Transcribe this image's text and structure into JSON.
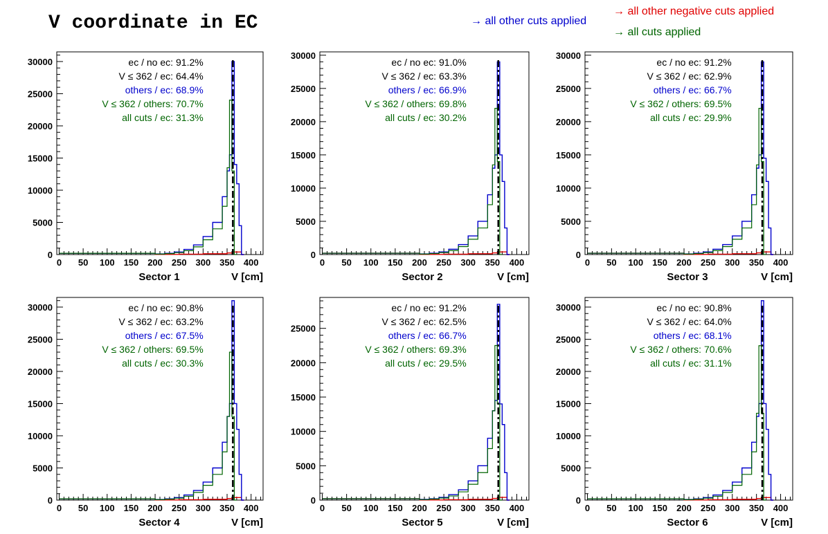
{
  "title": "V coordinate in EC",
  "legend": {
    "blue": "→ all other cuts applied",
    "red": "→ all other negative cuts applied",
    "green": "→ all cuts applied"
  },
  "colors": {
    "blue": "#0000cc",
    "red": "#e00000",
    "green": "#006400",
    "black": "#000000"
  },
  "chart_data": [
    {
      "type": "bar",
      "panel": "Sector 1",
      "xlabel": "V [cm]",
      "xlim": [
        -5,
        425
      ],
      "ylim": [
        0,
        31500
      ],
      "xticks": [
        0,
        50,
        100,
        150,
        200,
        250,
        300,
        350,
        400
      ],
      "yticks": [
        0,
        5000,
        10000,
        15000,
        20000,
        25000,
        30000
      ],
      "cut_line_x": 362,
      "stats": [
        {
          "label": "ec / no ec:",
          "value": "91.2%",
          "color": "black"
        },
        {
          "label": "V ≤ 362 / ec:",
          "value": "64.4%",
          "color": "black"
        },
        {
          "label": "others / ec:",
          "value": "68.9%",
          "color": "blue"
        },
        {
          "label": "V ≤ 362 / others:",
          "value": "70.7%",
          "color": "green"
        },
        {
          "label": "all cuts / ec:",
          "value": "31.3%",
          "color": "green"
        }
      ],
      "series": [
        {
          "name": "all other cuts applied",
          "color": "blue",
          "x": [
            200,
            220,
            240,
            260,
            280,
            300,
            320,
            340,
            350,
            355,
            360,
            365,
            370,
            375,
            380
          ],
          "y": [
            100,
            200,
            400,
            800,
            1500,
            2800,
            5000,
            9000,
            13000,
            15500,
            30000,
            14000,
            11000,
            4500,
            0
          ]
        },
        {
          "name": "all cuts applied",
          "color": "green",
          "x": [
            200,
            220,
            240,
            260,
            280,
            300,
            320,
            340,
            350,
            355,
            360,
            365
          ],
          "y": [
            80,
            150,
            300,
            600,
            1200,
            2300,
            4000,
            7500,
            13500,
            24000,
            13000,
            0
          ]
        },
        {
          "name": "all other negative cuts applied",
          "color": "red",
          "x": [
            200,
            250,
            300,
            350,
            362,
            380
          ],
          "y": [
            20,
            60,
            120,
            250,
            400,
            0
          ]
        }
      ]
    },
    {
      "type": "bar",
      "panel": "Sector 2",
      "xlabel": "V [cm]",
      "xlim": [
        -5,
        425
      ],
      "ylim": [
        0,
        30500
      ],
      "xticks": [
        0,
        50,
        100,
        150,
        200,
        250,
        300,
        350,
        400
      ],
      "yticks": [
        0,
        5000,
        10000,
        15000,
        20000,
        25000,
        30000
      ],
      "cut_line_x": 362,
      "stats": [
        {
          "label": "ec / no ec:",
          "value": "91.0%",
          "color": "black"
        },
        {
          "label": "V ≤ 362 / ec:",
          "value": "63.3%",
          "color": "black"
        },
        {
          "label": "others / ec:",
          "value": "66.9%",
          "color": "blue"
        },
        {
          "label": "V ≤ 362 / others:",
          "value": "69.8%",
          "color": "green"
        },
        {
          "label": "all cuts / ec:",
          "value": "30.2%",
          "color": "green"
        }
      ],
      "series": [
        {
          "name": "all other cuts applied",
          "color": "blue",
          "x": [
            200,
            220,
            240,
            260,
            280,
            300,
            320,
            340,
            350,
            355,
            360,
            365,
            370,
            375,
            380
          ],
          "y": [
            100,
            200,
            400,
            800,
            1500,
            2800,
            5000,
            9000,
            13000,
            15000,
            29000,
            15000,
            11000,
            4000,
            0
          ]
        },
        {
          "name": "all cuts applied",
          "color": "green",
          "x": [
            200,
            220,
            240,
            260,
            280,
            300,
            320,
            340,
            350,
            355,
            360,
            365
          ],
          "y": [
            80,
            150,
            300,
            600,
            1200,
            2300,
            4000,
            7500,
            13500,
            22000,
            14000,
            0
          ]
        },
        {
          "name": "all other negative cuts applied",
          "color": "red",
          "x": [
            200,
            250,
            300,
            350,
            362,
            380
          ],
          "y": [
            20,
            60,
            120,
            250,
            400,
            0
          ]
        }
      ]
    },
    {
      "type": "bar",
      "panel": "Sector 3",
      "xlabel": "V [cm]",
      "xlim": [
        -5,
        425
      ],
      "ylim": [
        0,
        30500
      ],
      "xticks": [
        0,
        50,
        100,
        150,
        200,
        250,
        300,
        350,
        400
      ],
      "yticks": [
        0,
        5000,
        10000,
        15000,
        20000,
        25000,
        30000
      ],
      "cut_line_x": 362,
      "stats": [
        {
          "label": "ec / no ec:",
          "value": "91.2%",
          "color": "black"
        },
        {
          "label": "V ≤ 362 / ec:",
          "value": "62.9%",
          "color": "black"
        },
        {
          "label": "others / ec:",
          "value": "66.7%",
          "color": "blue"
        },
        {
          "label": "V ≤ 362 / others:",
          "value": "69.5%",
          "color": "green"
        },
        {
          "label": "all cuts / ec:",
          "value": "29.9%",
          "color": "green"
        }
      ],
      "series": [
        {
          "name": "all other cuts applied",
          "color": "blue",
          "x": [
            200,
            220,
            240,
            260,
            280,
            300,
            320,
            340,
            350,
            355,
            360,
            365,
            370,
            375,
            380
          ],
          "y": [
            100,
            200,
            400,
            800,
            1500,
            2800,
            5000,
            9000,
            13000,
            15000,
            29000,
            14500,
            11000,
            4000,
            0
          ]
        },
        {
          "name": "all cuts applied",
          "color": "green",
          "x": [
            200,
            220,
            240,
            260,
            280,
            300,
            320,
            340,
            350,
            355,
            360,
            365
          ],
          "y": [
            80,
            150,
            300,
            600,
            1200,
            2300,
            4000,
            7500,
            13500,
            22000,
            14000,
            0
          ]
        },
        {
          "name": "all other negative cuts applied",
          "color": "red",
          "x": [
            200,
            250,
            300,
            350,
            362,
            380
          ],
          "y": [
            20,
            60,
            120,
            250,
            400,
            0
          ]
        }
      ]
    },
    {
      "type": "bar",
      "panel": "Sector 4",
      "xlabel": "V [cm]",
      "xlim": [
        -5,
        425
      ],
      "ylim": [
        0,
        31500
      ],
      "xticks": [
        0,
        50,
        100,
        150,
        200,
        250,
        300,
        350,
        400
      ],
      "yticks": [
        0,
        5000,
        10000,
        15000,
        20000,
        25000,
        30000
      ],
      "cut_line_x": 362,
      "stats": [
        {
          "label": "ec / no ec:",
          "value": "90.8%",
          "color": "black"
        },
        {
          "label": "V ≤ 362 / ec:",
          "value": "63.2%",
          "color": "black"
        },
        {
          "label": "others / ec:",
          "value": "67.5%",
          "color": "blue"
        },
        {
          "label": "V ≤ 362 / others:",
          "value": "69.5%",
          "color": "green"
        },
        {
          "label": "all cuts / ec:",
          "value": "30.3%",
          "color": "green"
        }
      ],
      "series": [
        {
          "name": "all other cuts applied",
          "color": "blue",
          "x": [
            200,
            220,
            240,
            260,
            280,
            300,
            320,
            340,
            350,
            355,
            360,
            365,
            370,
            375,
            380
          ],
          "y": [
            100,
            200,
            400,
            800,
            1500,
            2800,
            5000,
            9000,
            13000,
            15000,
            31000,
            15000,
            11000,
            4000,
            0
          ]
        },
        {
          "name": "all cuts applied",
          "color": "green",
          "x": [
            200,
            220,
            240,
            260,
            280,
            300,
            320,
            340,
            350,
            355,
            360,
            365
          ],
          "y": [
            80,
            150,
            300,
            600,
            1200,
            2300,
            4000,
            7500,
            13000,
            23000,
            13000,
            0
          ]
        },
        {
          "name": "all other negative cuts applied",
          "color": "red",
          "x": [
            200,
            250,
            300,
            350,
            362,
            380
          ],
          "y": [
            20,
            60,
            120,
            250,
            400,
            0
          ]
        }
      ]
    },
    {
      "type": "bar",
      "panel": "Sector 5",
      "xlabel": "V [cm]",
      "xlim": [
        -5,
        425
      ],
      "ylim": [
        0,
        29500
      ],
      "xticks": [
        0,
        50,
        100,
        150,
        200,
        250,
        300,
        350,
        400
      ],
      "yticks": [
        0,
        5000,
        10000,
        15000,
        20000,
        25000
      ],
      "cut_line_x": 362,
      "stats": [
        {
          "label": "ec / no ec:",
          "value": "91.2%",
          "color": "black"
        },
        {
          "label": "V ≤ 362 / ec:",
          "value": "62.5%",
          "color": "black"
        },
        {
          "label": "others / ec:",
          "value": "66.7%",
          "color": "blue"
        },
        {
          "label": "V ≤ 362 / others:",
          "value": "69.3%",
          "color": "green"
        },
        {
          "label": "all cuts / ec:",
          "value": "29.5%",
          "color": "green"
        }
      ],
      "series": [
        {
          "name": "all other cuts applied",
          "color": "blue",
          "x": [
            200,
            220,
            240,
            260,
            280,
            300,
            320,
            340,
            350,
            355,
            360,
            365,
            370,
            375,
            380
          ],
          "y": [
            100,
            200,
            400,
            800,
            1500,
            2800,
            5000,
            9000,
            13000,
            14500,
            28500,
            14000,
            11000,
            4000,
            0
          ]
        },
        {
          "name": "all cuts applied",
          "color": "green",
          "x": [
            200,
            220,
            240,
            260,
            280,
            300,
            320,
            340,
            350,
            355,
            360,
            365
          ],
          "y": [
            80,
            150,
            300,
            600,
            1200,
            2300,
            4000,
            7500,
            13000,
            22500,
            14000,
            0
          ]
        },
        {
          "name": "all other negative cuts applied",
          "color": "red",
          "x": [
            200,
            250,
            300,
            350,
            362,
            380
          ],
          "y": [
            20,
            60,
            120,
            250,
            400,
            0
          ]
        }
      ]
    },
    {
      "type": "bar",
      "panel": "Sector 6",
      "xlabel": "V [cm]",
      "xlim": [
        -5,
        425
      ],
      "ylim": [
        0,
        31500
      ],
      "xticks": [
        0,
        50,
        100,
        150,
        200,
        250,
        300,
        350,
        400
      ],
      "yticks": [
        0,
        5000,
        10000,
        15000,
        20000,
        25000,
        30000
      ],
      "cut_line_x": 362,
      "stats": [
        {
          "label": "ec / no ec:",
          "value": "90.8%",
          "color": "black"
        },
        {
          "label": "V ≤ 362 / ec:",
          "value": "64.0%",
          "color": "black"
        },
        {
          "label": "others / ec:",
          "value": "68.1%",
          "color": "blue"
        },
        {
          "label": "V ≤ 362 / others:",
          "value": "70.6%",
          "color": "green"
        },
        {
          "label": "all cuts / ec:",
          "value": "31.1%",
          "color": "green"
        }
      ],
      "series": [
        {
          "name": "all other cuts applied",
          "color": "blue",
          "x": [
            200,
            220,
            240,
            260,
            280,
            300,
            320,
            340,
            350,
            355,
            360,
            365,
            370,
            375,
            380
          ],
          "y": [
            100,
            200,
            400,
            800,
            1500,
            2800,
            5000,
            9000,
            13000,
            15000,
            31000,
            15000,
            11000,
            4000,
            0
          ]
        },
        {
          "name": "all cuts applied",
          "color": "green",
          "x": [
            200,
            220,
            240,
            260,
            280,
            300,
            320,
            340,
            350,
            355,
            360,
            365
          ],
          "y": [
            80,
            150,
            300,
            600,
            1200,
            2300,
            4000,
            7500,
            13500,
            24000,
            13500,
            0
          ]
        },
        {
          "name": "all other negative cuts applied",
          "color": "red",
          "x": [
            200,
            250,
            300,
            350,
            362,
            380
          ],
          "y": [
            20,
            60,
            120,
            250,
            400,
            0
          ]
        }
      ]
    }
  ]
}
